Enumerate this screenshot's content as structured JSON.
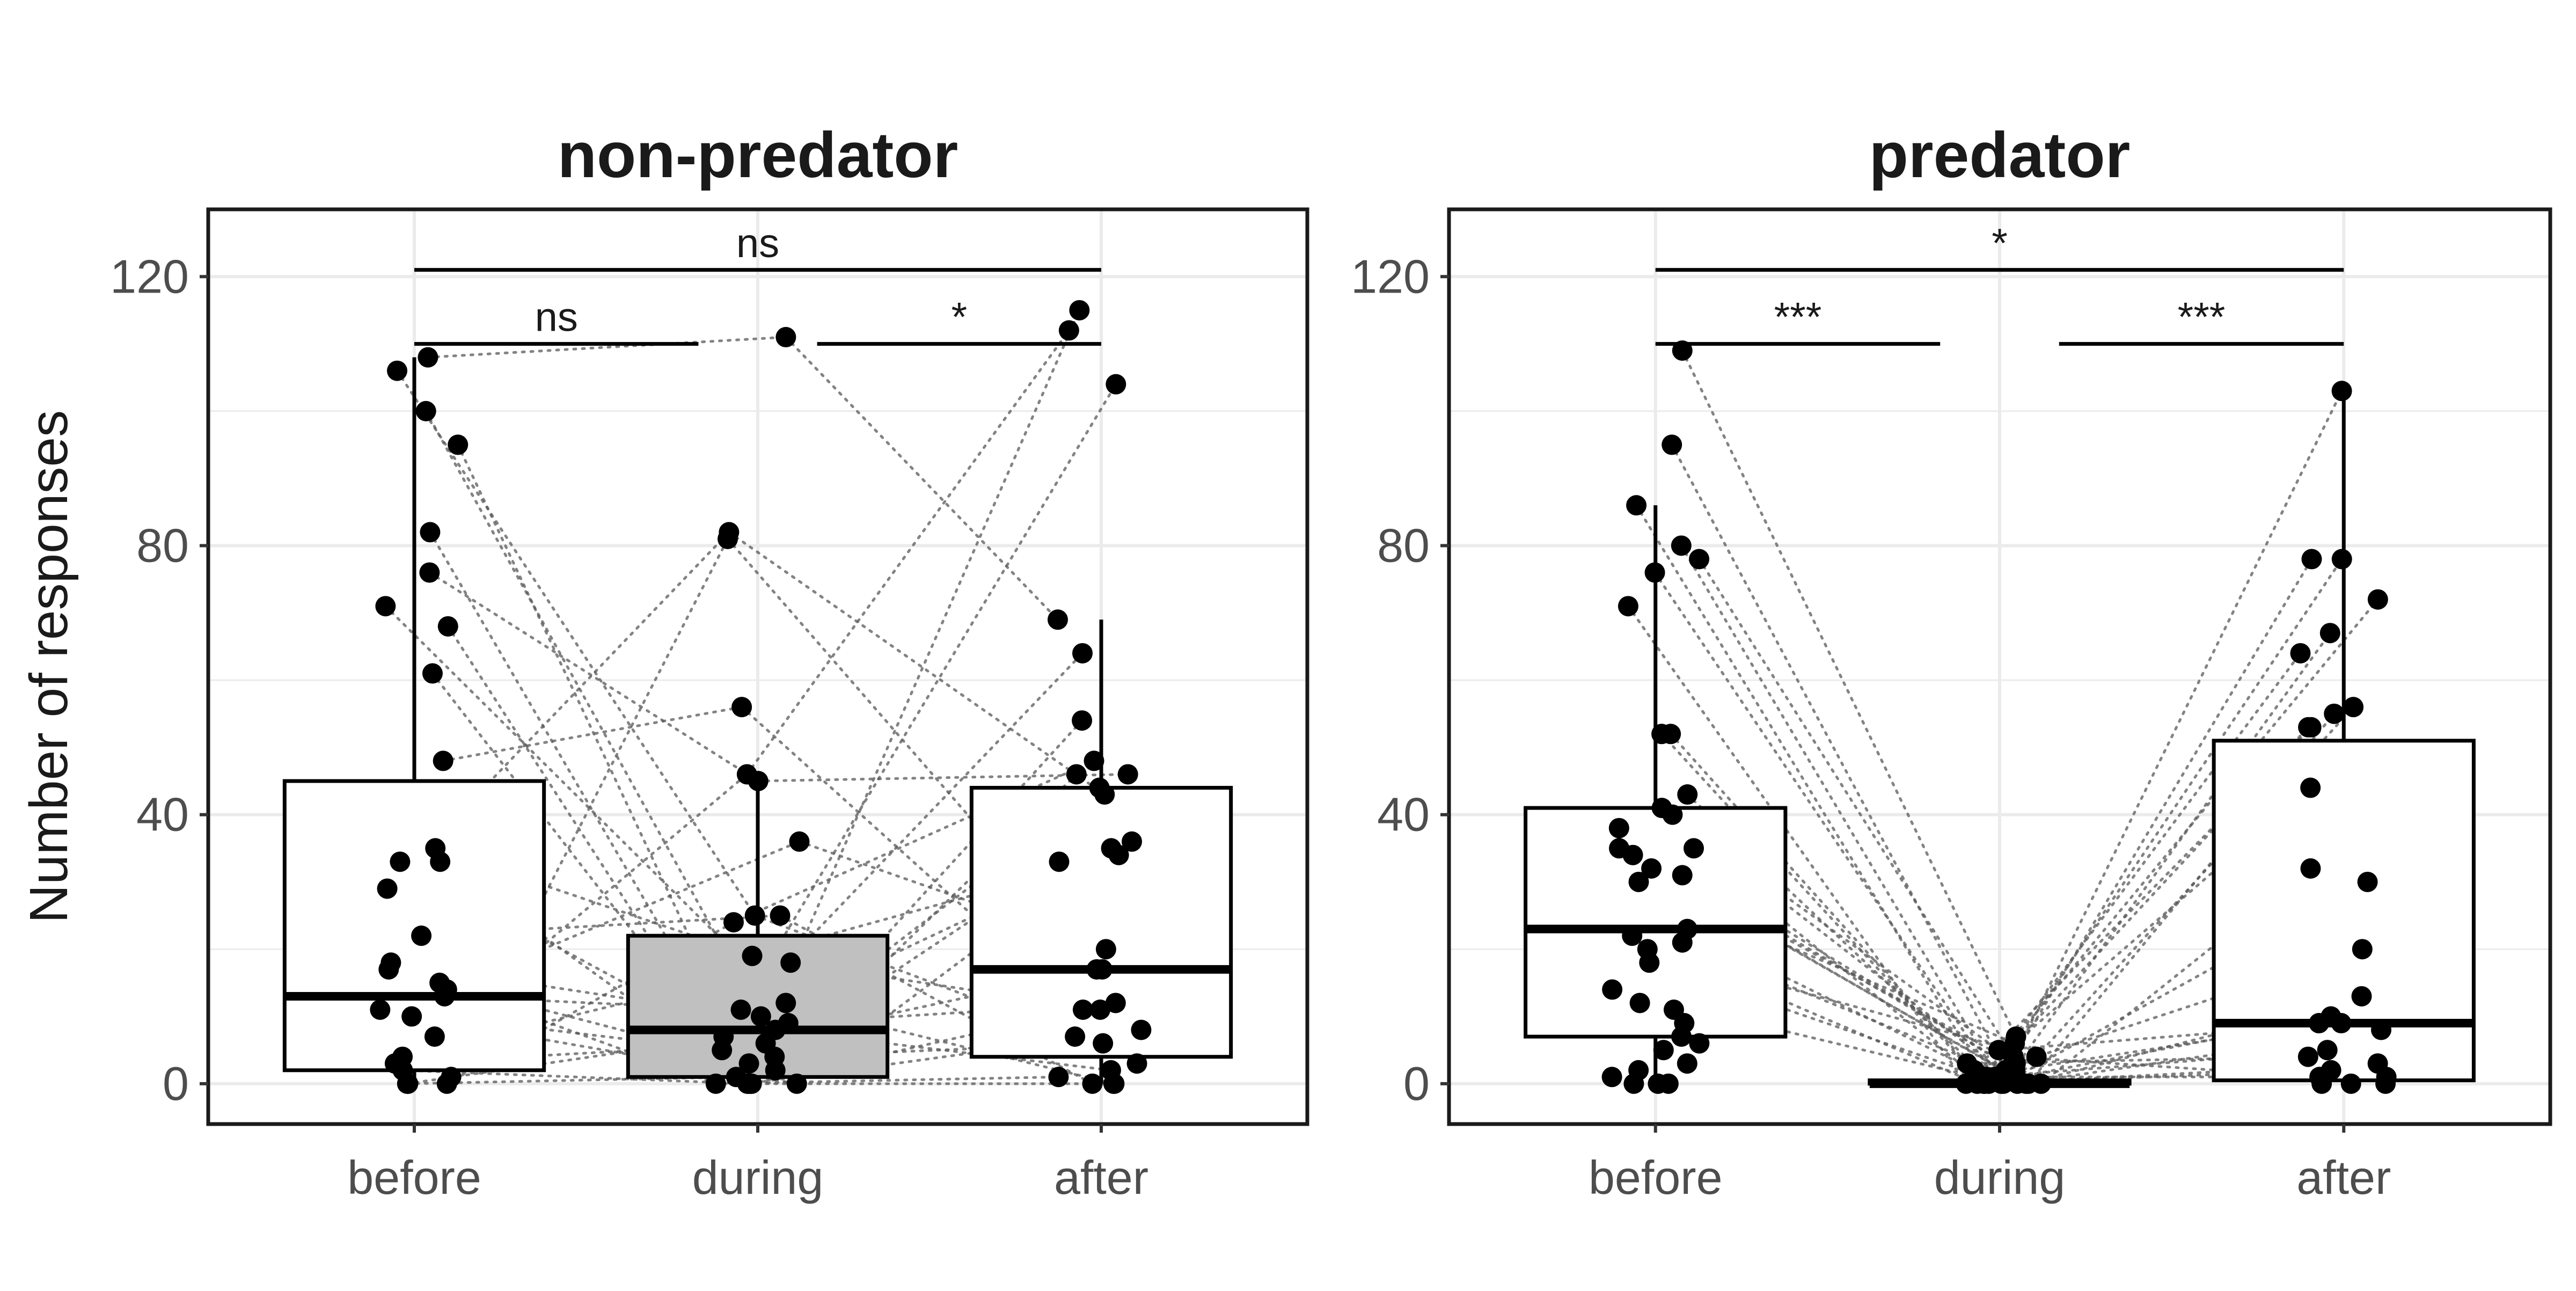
{
  "chart_data": [
    {
      "type": "box",
      "title": "non-predator",
      "ylabel": "Number of responses",
      "categories": [
        "before",
        "during",
        "after"
      ],
      "ylim": [
        -6,
        130
      ],
      "yticks": [
        0,
        40,
        80,
        120
      ],
      "grid": true,
      "boxes": [
        {
          "category": "before",
          "q1": 2,
          "median": 13,
          "q3": 45,
          "whisker_low": 0,
          "whisker_high": 108,
          "fill": "#ffffff"
        },
        {
          "category": "during",
          "q1": 1,
          "median": 8,
          "q3": 22,
          "whisker_low": 0,
          "whisker_high": 46,
          "fill": "#c0c0c0"
        },
        {
          "category": "after",
          "q1": 4,
          "median": 17,
          "q3": 44,
          "whisker_low": 0,
          "whisker_high": 69,
          "fill": "#ffffff"
        }
      ],
      "points": {
        "before": [
          108,
          106,
          100,
          95,
          82,
          76,
          71,
          68,
          61,
          48,
          35,
          33,
          33,
          29,
          22,
          18,
          17,
          15,
          14,
          13,
          11,
          10,
          7,
          4,
          3,
          2,
          1,
          0,
          0,
          0
        ],
        "during": [
          111,
          82,
          81,
          56,
          46,
          45,
          36,
          25,
          25,
          24,
          19,
          18,
          12,
          11,
          10,
          9,
          8,
          7,
          6,
          5,
          4,
          3,
          2,
          1,
          0,
          0,
          0,
          0,
          0,
          0
        ],
        "after": [
          115,
          112,
          104,
          69,
          64,
          54,
          48,
          46,
          46,
          44,
          43,
          36,
          35,
          34,
          33,
          20,
          17,
          17,
          12,
          11,
          11,
          8,
          7,
          6,
          3,
          2,
          1,
          0,
          0,
          0
        ]
      },
      "significance": [
        {
          "from": "before",
          "to": "after",
          "label": "ns",
          "y": 121
        },
        {
          "from": "before",
          "to": "during",
          "label": "ns",
          "y": 110
        },
        {
          "from": "during",
          "to": "after",
          "label": "*",
          "y": 110
        }
      ]
    },
    {
      "type": "box",
      "title": "predator",
      "ylabel": "",
      "categories": [
        "before",
        "during",
        "after"
      ],
      "ylim": [
        -6,
        130
      ],
      "yticks": [
        0,
        40,
        80,
        120
      ],
      "grid": true,
      "boxes": [
        {
          "category": "before",
          "q1": 7,
          "median": 23,
          "q3": 41,
          "whisker_low": 0,
          "whisker_high": 86,
          "fill": "#ffffff"
        },
        {
          "category": "during",
          "q1": 0,
          "median": 0,
          "q3": 0.5,
          "whisker_low": 0,
          "whisker_high": 1,
          "fill": "#ffffff"
        },
        {
          "category": "after",
          "q1": 0.5,
          "median": 9,
          "q3": 51,
          "whisker_low": 0,
          "whisker_high": 103,
          "fill": "#ffffff"
        }
      ],
      "points": {
        "before": [
          109,
          95,
          86,
          80,
          78,
          76,
          71,
          52,
          52,
          43,
          41,
          40,
          38,
          35,
          35,
          34,
          32,
          31,
          30,
          23,
          22,
          21,
          20,
          18,
          14,
          12,
          11,
          9,
          7,
          6,
          5,
          3,
          2,
          1,
          0,
          0,
          0
        ],
        "during": [
          7,
          6,
          5,
          4,
          4,
          3,
          3,
          2,
          2,
          2,
          1,
          1,
          1,
          1,
          0,
          0,
          0,
          0,
          0,
          0,
          0,
          0,
          0,
          0,
          0
        ],
        "after": [
          103,
          78,
          78,
          72,
          67,
          64,
          56,
          55,
          53,
          53,
          44,
          32,
          30,
          20,
          13,
          10,
          9,
          9,
          8,
          5,
          4,
          3,
          2,
          1,
          1,
          0,
          0,
          0
        ]
      },
      "significance": [
        {
          "from": "before",
          "to": "after",
          "label": "*",
          "y": 121
        },
        {
          "from": "before",
          "to": "during",
          "label": "***",
          "y": 110
        },
        {
          "from": "during",
          "to": "after",
          "label": "***",
          "y": 110
        }
      ]
    }
  ]
}
